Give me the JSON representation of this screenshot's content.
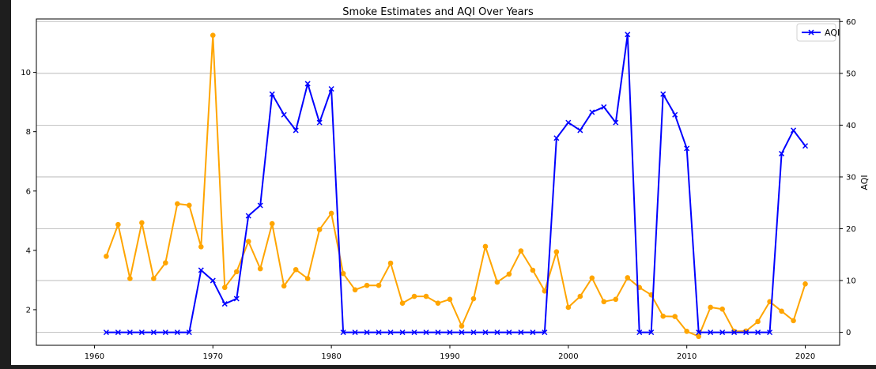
{
  "chart_data": {
    "type": "line",
    "title": "Smoke Estimates and AQI Over Years",
    "xlabel": "",
    "ylabel_left": "",
    "ylabel_right": "AQI",
    "xlim": [
      1955.1,
      2022.9
    ],
    "ylim_left": [
      0.8,
      11.8
    ],
    "ylim_right": [
      -2.5,
      60.5
    ],
    "x_ticks": [
      1960,
      1970,
      1980,
      1990,
      2000,
      2010,
      2020
    ],
    "y_left_ticks": [
      2,
      4,
      6,
      8,
      10
    ],
    "y_right_ticks": [
      0,
      10,
      20,
      30,
      40,
      50,
      60
    ],
    "grid": "horizontal, right axis",
    "legend_position": "upper-right",
    "x": [
      1961,
      1962,
      1963,
      1964,
      1965,
      1966,
      1967,
      1968,
      1969,
      1970,
      1971,
      1972,
      1973,
      1974,
      1975,
      1976,
      1977,
      1978,
      1979,
      1980,
      1981,
      1982,
      1983,
      1984,
      1985,
      1986,
      1987,
      1988,
      1989,
      1990,
      1991,
      1992,
      1993,
      1994,
      1995,
      1996,
      1997,
      1998,
      1999,
      2000,
      2001,
      2002,
      2003,
      2004,
      2005,
      2006,
      2007,
      2008,
      2009,
      2010,
      2011,
      2012,
      2013,
      2014,
      2015,
      2016,
      2017,
      2018,
      2019,
      2020
    ],
    "series": [
      {
        "name": "",
        "axis": "left",
        "color": "#ffa500",
        "marker": "circle",
        "values": [
          3.8,
          4.87,
          3.05,
          4.93,
          3.05,
          3.58,
          5.57,
          5.52,
          4.12,
          11.25,
          2.75,
          3.28,
          4.3,
          3.38,
          4.9,
          2.8,
          3.35,
          3.05,
          4.7,
          5.25,
          3.22,
          2.67,
          2.82,
          2.82,
          3.57,
          2.22,
          2.45,
          2.45,
          2.22,
          2.35,
          1.45,
          2.37,
          4.13,
          2.93,
          3.2,
          3.98,
          3.33,
          2.63,
          3.95,
          2.08,
          2.45,
          3.07,
          2.27,
          2.35,
          3.08,
          2.75,
          2.5,
          1.78,
          1.77,
          1.27,
          1.1,
          2.08,
          2.02,
          1.27,
          1.28,
          1.6,
          2.27,
          1.95,
          1.63,
          2.87
        ]
      },
      {
        "name": "AQI",
        "axis": "right",
        "color": "#0000ff",
        "marker": "x",
        "values": [
          0,
          0,
          0,
          0,
          0,
          0,
          0,
          0,
          12,
          10,
          5.5,
          6.5,
          22.5,
          24.5,
          46,
          42,
          39,
          48,
          40.5,
          47,
          0,
          0,
          0,
          0,
          0,
          0,
          0,
          0,
          0,
          0,
          0,
          0,
          0,
          0,
          0,
          0,
          0,
          0,
          37.5,
          40.5,
          39,
          42.5,
          43.5,
          40.5,
          57.5,
          0,
          0,
          46,
          42,
          35.5,
          0,
          0,
          0,
          0,
          0,
          0,
          0,
          34.5,
          39,
          36
        ]
      }
    ]
  }
}
